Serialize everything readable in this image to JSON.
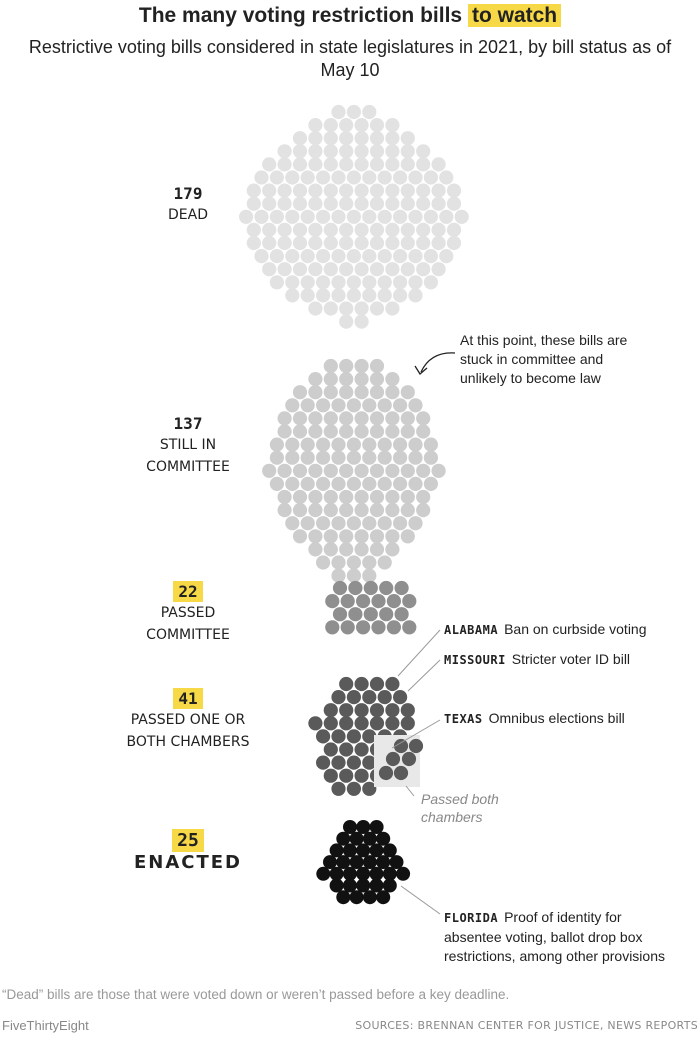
{
  "title_main": "The many voting restriction bills",
  "title_highlight": "to watch",
  "subtitle": "Restrictive voting bills considered in state legislatures in 2021, by bill status as of May 10",
  "chart_data": {
    "type": "dot-cluster",
    "categories": [
      {
        "count": "179",
        "label_lines": [
          "DEAD"
        ],
        "value": 179,
        "color": "#e2e2e2",
        "highlight": false
      },
      {
        "count": "137",
        "label_lines": [
          "STILL IN",
          "COMMITTEE"
        ],
        "value": 137,
        "color": "#cdcdcd",
        "highlight": false
      },
      {
        "count": "22",
        "label_lines": [
          "PASSED",
          "COMMITTEE"
        ],
        "value": 22,
        "color": "#8f8f8f",
        "highlight": true
      },
      {
        "count": "41",
        "label_lines": [
          "PASSED ONE OR",
          "BOTH CHAMBERS"
        ],
        "value": 41,
        "color": "#5a5a5a",
        "highlight": true,
        "passed_both_chambers": 6
      },
      {
        "count": "25",
        "label_lines": [
          "ENACTED"
        ],
        "value": 25,
        "color": "#111111",
        "highlight": true
      }
    ]
  },
  "annotations": {
    "committee_note": [
      "At this point, these bills are",
      "stuck in committee and",
      "unlikely to become law"
    ],
    "alabama": {
      "state": "ALABAMA",
      "text": "Ban on curbside voting"
    },
    "missouri": {
      "state": "MISSOURI",
      "text": "Stricter voter ID bill"
    },
    "texas": {
      "state": "TEXAS",
      "text": "Omnibus elections bill"
    },
    "passed_both": [
      "Passed both",
      "chambers"
    ],
    "florida": {
      "state": "FLORIDA",
      "lines": [
        "Proof of identity for",
        "absentee voting, ballot drop box",
        "restrictions, among other provisions"
      ]
    }
  },
  "footnote": "“Dead” bills are those that were voted down or weren’t passed before a key deadline.",
  "brand": "FiveThirtyEight",
  "sources": "SOURCES: BRENNAN CENTER FOR JUSTICE, NEWS REPORTS"
}
